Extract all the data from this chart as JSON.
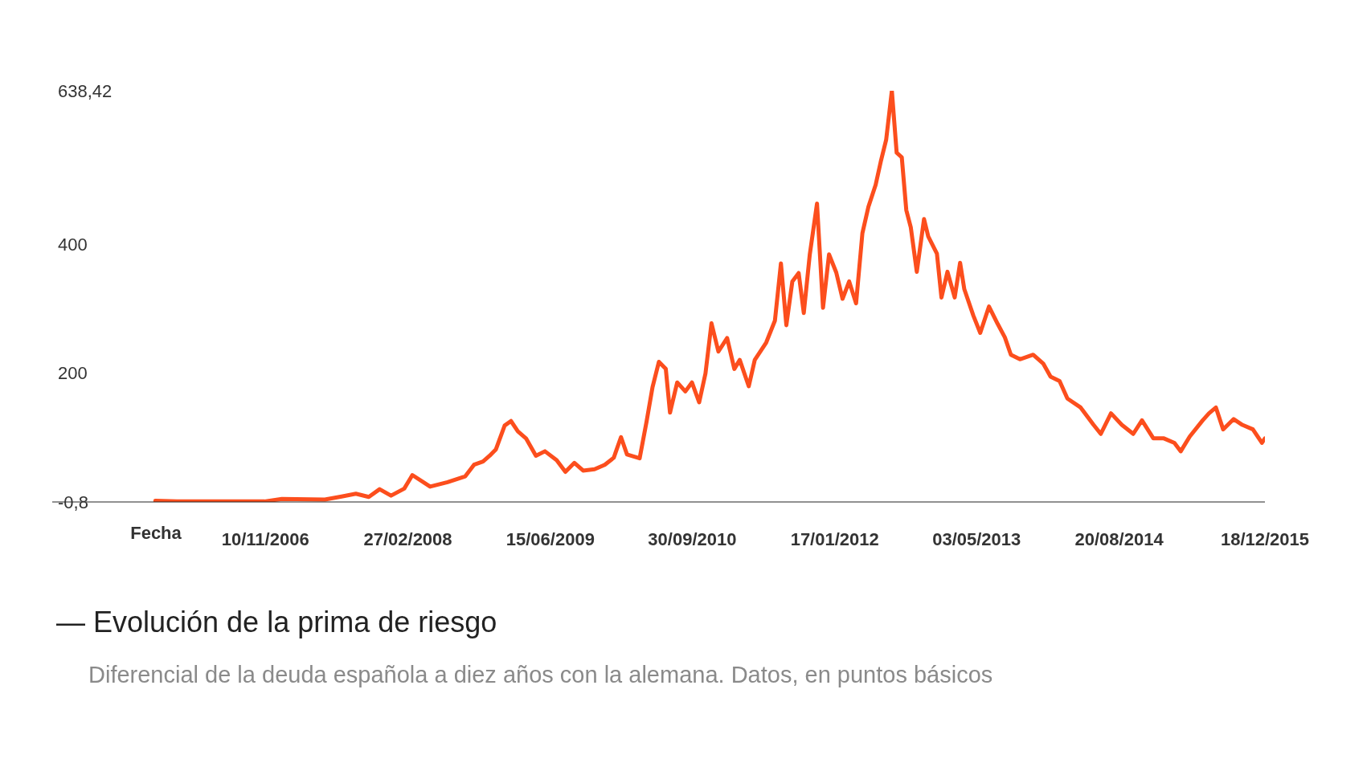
{
  "chart_data": {
    "type": "line",
    "title": "— Evolución de la prima de riesgo",
    "subtitle": "Diferencial de la deuda española a diez años con la alemana. Datos, en puntos básicos",
    "xlabel": "Fecha",
    "x": [
      "2005-11-09",
      "2006-01-20",
      "2006-05-15",
      "2006-09-10",
      "2006-11-07",
      "2007-01-04",
      "2007-05-27",
      "2007-07-25",
      "2007-09-07",
      "2007-10-20",
      "2007-11-25",
      "2008-01-02",
      "2008-02-15",
      "2008-03-13",
      "2008-05-11",
      "2008-07-08",
      "2008-09-05",
      "2008-10-04",
      "2008-11-03",
      "2008-11-25",
      "2008-12-16",
      "2009-01-14",
      "2009-02-04",
      "2009-02-27",
      "2009-03-26",
      "2009-04-28",
      "2009-05-28",
      "2009-07-06",
      "2009-08-04",
      "2009-09-03",
      "2009-10-02",
      "2009-11-09",
      "2009-12-13",
      "2010-01-12",
      "2010-02-05",
      "2010-02-25",
      "2010-04-08",
      "2010-05-01",
      "2010-05-21",
      "2010-06-11",
      "2010-07-04",
      "2010-07-18",
      "2010-08-11",
      "2010-09-07",
      "2010-09-29",
      "2010-10-23",
      "2010-11-13",
      "2010-12-03",
      "2010-12-26",
      "2011-01-24",
      "2011-02-17",
      "2011-03-07",
      "2011-04-06",
      "2011-04-26",
      "2011-06-03",
      "2011-07-02",
      "2011-07-22",
      "2011-08-09",
      "2011-08-29",
      "2011-09-19",
      "2011-10-06",
      "2011-10-26",
      "2011-11-19",
      "2011-12-09",
      "2011-12-29",
      "2012-01-22",
      "2012-02-12",
      "2012-03-05",
      "2012-03-28",
      "2012-04-18",
      "2012-05-08",
      "2012-06-01",
      "2012-06-18",
      "2012-07-06",
      "2012-07-25",
      "2012-08-10",
      "2012-08-27",
      "2012-09-11",
      "2012-09-26",
      "2012-10-16",
      "2012-11-09",
      "2012-11-23",
      "2012-12-22",
      "2013-01-06",
      "2013-01-26",
      "2013-02-19",
      "2013-03-09",
      "2013-03-23",
      "2013-04-22",
      "2013-05-15",
      "2013-06-13",
      "2013-07-12",
      "2013-08-05",
      "2013-08-25",
      "2013-09-24",
      "2013-11-07",
      "2013-12-11",
      "2014-01-04",
      "2014-02-03",
      "2014-03-01",
      "2014-04-14",
      "2014-05-27",
      "2014-06-20",
      "2014-07-24",
      "2014-08-29",
      "2014-10-06",
      "2014-11-04",
      "2014-12-12",
      "2015-01-16",
      "2015-02-20",
      "2015-03-13",
      "2015-04-12",
      "2015-05-25",
      "2015-06-15",
      "2015-07-08",
      "2015-08-01",
      "2015-09-05",
      "2015-10-04",
      "2015-11-08",
      "2015-12-08",
      "2015-12-18"
    ],
    "series": [
      {
        "color": "#fc4e1d",
        "values": [
          1,
          0,
          0,
          0,
          0,
          4,
          3,
          8,
          12,
          7,
          19,
          9,
          20,
          41,
          23,
          30,
          39,
          57,
          62,
          71,
          81,
          118,
          125,
          109,
          98,
          71,
          78,
          64,
          46,
          60,
          48,
          50,
          57,
          68,
          100,
          73,
          67,
          124,
          178,
          217,
          206,
          138,
          185,
          171,
          185,
          154,
          199,
          277,
          233,
          254,
          206,
          220,
          179,
          220,
          247,
          281,
          370,
          274,
          342,
          355,
          293,
          384,
          463,
          301,
          384,
          356,
          315,
          342,
          308,
          417,
          458,
          492,
          528,
          562,
          638.42,
          542,
          535,
          453,
          426,
          357,
          439,
          412,
          385,
          317,
          357,
          317,
          371,
          330,
          289,
          262,
          303,
          276,
          255,
          228,
          221,
          228,
          214,
          194,
          187,
          160,
          146,
          119,
          105,
          137,
          119,
          105,
          126,
          98,
          98,
          91,
          78,
          101,
          126,
          137,
          146,
          112,
          128,
          119,
          112,
          91,
          98
        ]
      }
    ],
    "xlim": [
      "2004-12-01",
      "2015-12-18"
    ],
    "xticks": [
      {
        "value": "2006-11-10",
        "label": "10/11/2006"
      },
      {
        "value": "2008-02-27",
        "label": "27/02/2008"
      },
      {
        "value": "2009-06-15",
        "label": "15/06/2009"
      },
      {
        "value": "2010-09-30",
        "label": "30/09/2010"
      },
      {
        "value": "2012-01-17",
        "label": "17/01/2012"
      },
      {
        "value": "2013-05-03",
        "label": "03/05/2013"
      },
      {
        "value": "2014-08-20",
        "label": "20/08/2014"
      },
      {
        "value": "2015-12-18",
        "label": "18/12/2015"
      }
    ],
    "ylim": [
      -0.8,
      638.42
    ],
    "yticks": [
      {
        "value": -0.8,
        "label": "-0,8"
      },
      {
        "value": 200,
        "label": "200"
      },
      {
        "value": 400,
        "label": "400"
      },
      {
        "value": 638.42,
        "label": "638,42"
      }
    ],
    "grid": false,
    "legend": false,
    "marker": "none",
    "line_style": "solid"
  }
}
